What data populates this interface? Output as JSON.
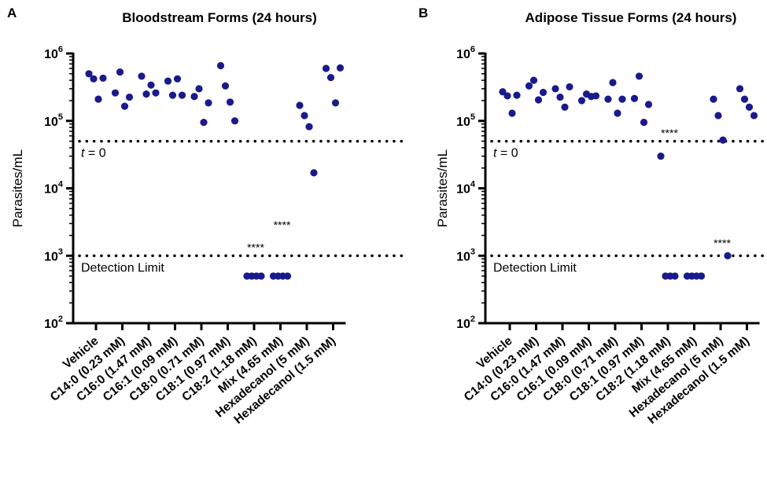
{
  "chart_data": [
    {
      "panel_letter": "A",
      "type": "scatter",
      "title": "Bloodstream Forms (24 hours)",
      "ylabel": "Parasites/mL",
      "yscale": "log",
      "ylim": [
        100,
        1000000
      ],
      "yticks": [
        {
          "base": "10",
          "exp": "6",
          "value": 1000000
        },
        {
          "base": "10",
          "exp": "5",
          "value": 100000
        },
        {
          "base": "10",
          "exp": "4",
          "value": 10000
        },
        {
          "base": "10",
          "exp": "3",
          "value": 1000
        },
        {
          "base": "10",
          "exp": "2",
          "value": 100
        }
      ],
      "categories": [
        "Vehicle",
        "C14:0 (0.23 mM)",
        "C16:0 (1.47 mM)",
        "C16:1 (0.09 mM)",
        "C18:0 (0.71 mM)",
        "C18:1 (0.97 mM)",
        "C18:2 (1.18 mM)",
        "Mix (4.65 mM)",
        "Hexadecanol (5 mM)",
        "Hexadecanol (1.5 mM)"
      ],
      "reference_lines": [
        {
          "value": 50000,
          "label_italic": "t",
          "label": " = 0"
        },
        {
          "value": 1000,
          "label_italic": "",
          "label": "Detection Limit"
        }
      ],
      "points": [
        [
          500000,
          420000,
          210000,
          430000
        ],
        [
          260000,
          530000,
          165000,
          225000
        ],
        [
          460000,
          250000,
          340000,
          260000
        ],
        [
          390000,
          240000,
          420000,
          240000
        ],
        [
          230000,
          300000,
          95000,
          185000
        ],
        [
          660000,
          330000,
          190000,
          100000
        ],
        [
          500,
          500,
          500,
          500
        ],
        [
          500,
          500,
          500,
          500
        ],
        [
          170000,
          120000,
          82000,
          17000
        ],
        [
          600000,
          440000,
          185000,
          610000
        ]
      ],
      "annotations": [
        {
          "text": "****",
          "category_index": 6,
          "value": 1300
        },
        {
          "text": "****",
          "category_index": 7,
          "value": 2800
        }
      ],
      "marker_color": "#1a1a8c"
    },
    {
      "panel_letter": "B",
      "type": "scatter",
      "title": "Adipose Tissue Forms (24 hours)",
      "ylabel": "Parasites/mL",
      "yscale": "log",
      "ylim": [
        100,
        1000000
      ],
      "yticks": [
        {
          "base": "10",
          "exp": "6",
          "value": 1000000
        },
        {
          "base": "10",
          "exp": "5",
          "value": 100000
        },
        {
          "base": "10",
          "exp": "4",
          "value": 10000
        },
        {
          "base": "10",
          "exp": "3",
          "value": 1000
        },
        {
          "base": "10",
          "exp": "2",
          "value": 100
        }
      ],
      "categories": [
        "Vehicle",
        "C14:0 (0.23 mM)",
        "C16:0 (1.47 mM)",
        "C16:1 (0.09 mM)",
        "C18:0 (0.71 mM)",
        "C18:1 (0.97 mM)",
        "C18:2 (1.18 mM)",
        "Mix (4.65 mM)",
        "Hexadecanol (5 mM)",
        "Hexadecanol (1.5 mM)"
      ],
      "reference_lines": [
        {
          "value": 50000,
          "label_italic": "t",
          "label": " = 0"
        },
        {
          "value": 1000,
          "label_italic": "",
          "label": "Detection Limit"
        }
      ],
      "points": [
        [
          270000,
          235000,
          130000,
          240000
        ],
        [
          330000,
          400000,
          205000,
          265000
        ],
        [
          300000,
          225000,
          160000,
          320000
        ],
        [
          200000,
          250000,
          230000,
          235000
        ],
        [
          210000,
          370000,
          130000,
          210000
        ],
        [
          215000,
          460000,
          95000,
          175000
        ],
        [
          30000,
          500,
          500,
          500
        ],
        [
          500,
          500,
          500,
          500
        ],
        [
          210000,
          120000,
          52000,
          1000
        ],
        [
          300000,
          210000,
          160000,
          120000
        ]
      ],
      "annotations": [
        {
          "text": "****",
          "category_index": 6,
          "value": 65000
        },
        {
          "text": "****",
          "category_index": 8,
          "value": 1500
        }
      ],
      "marker_color": "#1a1a8c"
    }
  ]
}
